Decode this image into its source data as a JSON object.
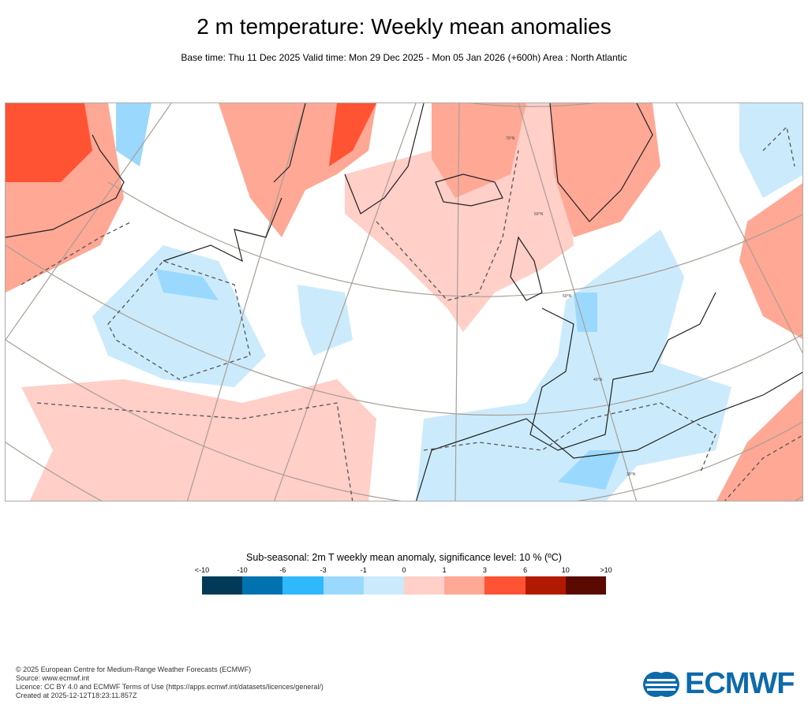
{
  "title": "2 m temperature: Weekly mean anomalies",
  "subtitle": "Base time: Thu 11 Dec 2025 Valid time: Mon 29 Dec 2025 - Mon 05 Jan 2026 (+600h) Area : North Atlantic",
  "map": {
    "lat_labels": [
      "70°N",
      "60°N",
      "50°N",
      "40°N",
      "30°N"
    ]
  },
  "legend": {
    "title": "Sub-seasonal: 2m T weekly mean anomaly, significance level: 10 % (ºC)",
    "ticks": [
      "<-10",
      "-10",
      "-6",
      "-3",
      "-1",
      "0",
      "1",
      "3",
      "6",
      "10",
      ">10"
    ],
    "colors": [
      "#003a57",
      "#0072b0",
      "#30b8fd",
      "#9ad9fd",
      "#cbebfc",
      "#ffcfc8",
      "#fea895",
      "#ff5333",
      "#b21a00",
      "#5a0a00"
    ]
  },
  "footer": {
    "copyright": "© 2025 European Centre for Medium-Range Weather Forecasts (ECMWF)",
    "source": "Source: www.ecmwf.int",
    "licence": "Licence: CC BY 4.0 and ECMWF Terms of Use (https://apps.ecmwf.int/datasets/licences/general/)",
    "created": "Created at 2025-12-12T18:23:11.857Z"
  },
  "logo": "ECMWF"
}
